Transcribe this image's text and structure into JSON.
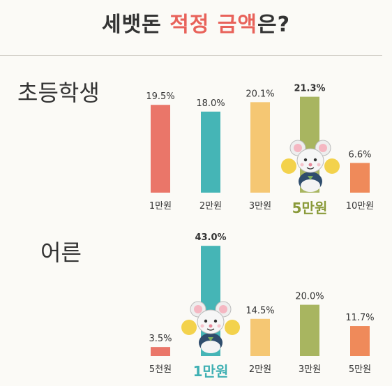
{
  "title": {
    "part1": "세뱃돈 ",
    "highlight": "적정 금액",
    "part2": "은?"
  },
  "colors": {
    "red": "#ea7669",
    "teal": "#45b5b6",
    "yellow": "#f5c773",
    "olive": "#a8b560",
    "orange": "#ef8a5a",
    "highlight_green": "#8a9a3a",
    "highlight_teal": "#3fb0b3"
  },
  "chart_data": [
    {
      "type": "bar",
      "group": "초등학생",
      "categories": [
        "1만원",
        "2만원",
        "3만원",
        "5만원",
        "10만원"
      ],
      "values": [
        19.5,
        18.0,
        20.1,
        21.3,
        6.6
      ],
      "value_labels": [
        "19.5%",
        "18.0%",
        "20.1%",
        "21.3%",
        "6.6%"
      ],
      "highlight_index": 3,
      "bar_colors": [
        "#ea7669",
        "#45b5b6",
        "#f5c773",
        "#a8b560",
        "#ef8a5a"
      ]
    },
    {
      "type": "bar",
      "group": "어른",
      "categories": [
        "5천원",
        "1만원",
        "2만원",
        "3만원",
        "5만원"
      ],
      "values": [
        3.5,
        43.0,
        14.5,
        20.0,
        11.7
      ],
      "value_labels": [
        "3.5%",
        "43.0%",
        "14.5%",
        "20.0%",
        "11.7%"
      ],
      "highlight_index": 1,
      "bar_colors": [
        "#ea7669",
        "#45b5b6",
        "#f5c773",
        "#a8b560",
        "#ef8a5a"
      ]
    }
  ],
  "illustrations": [
    "mouse-cheerleader-icon",
    "mouse-cheerleader-icon"
  ]
}
